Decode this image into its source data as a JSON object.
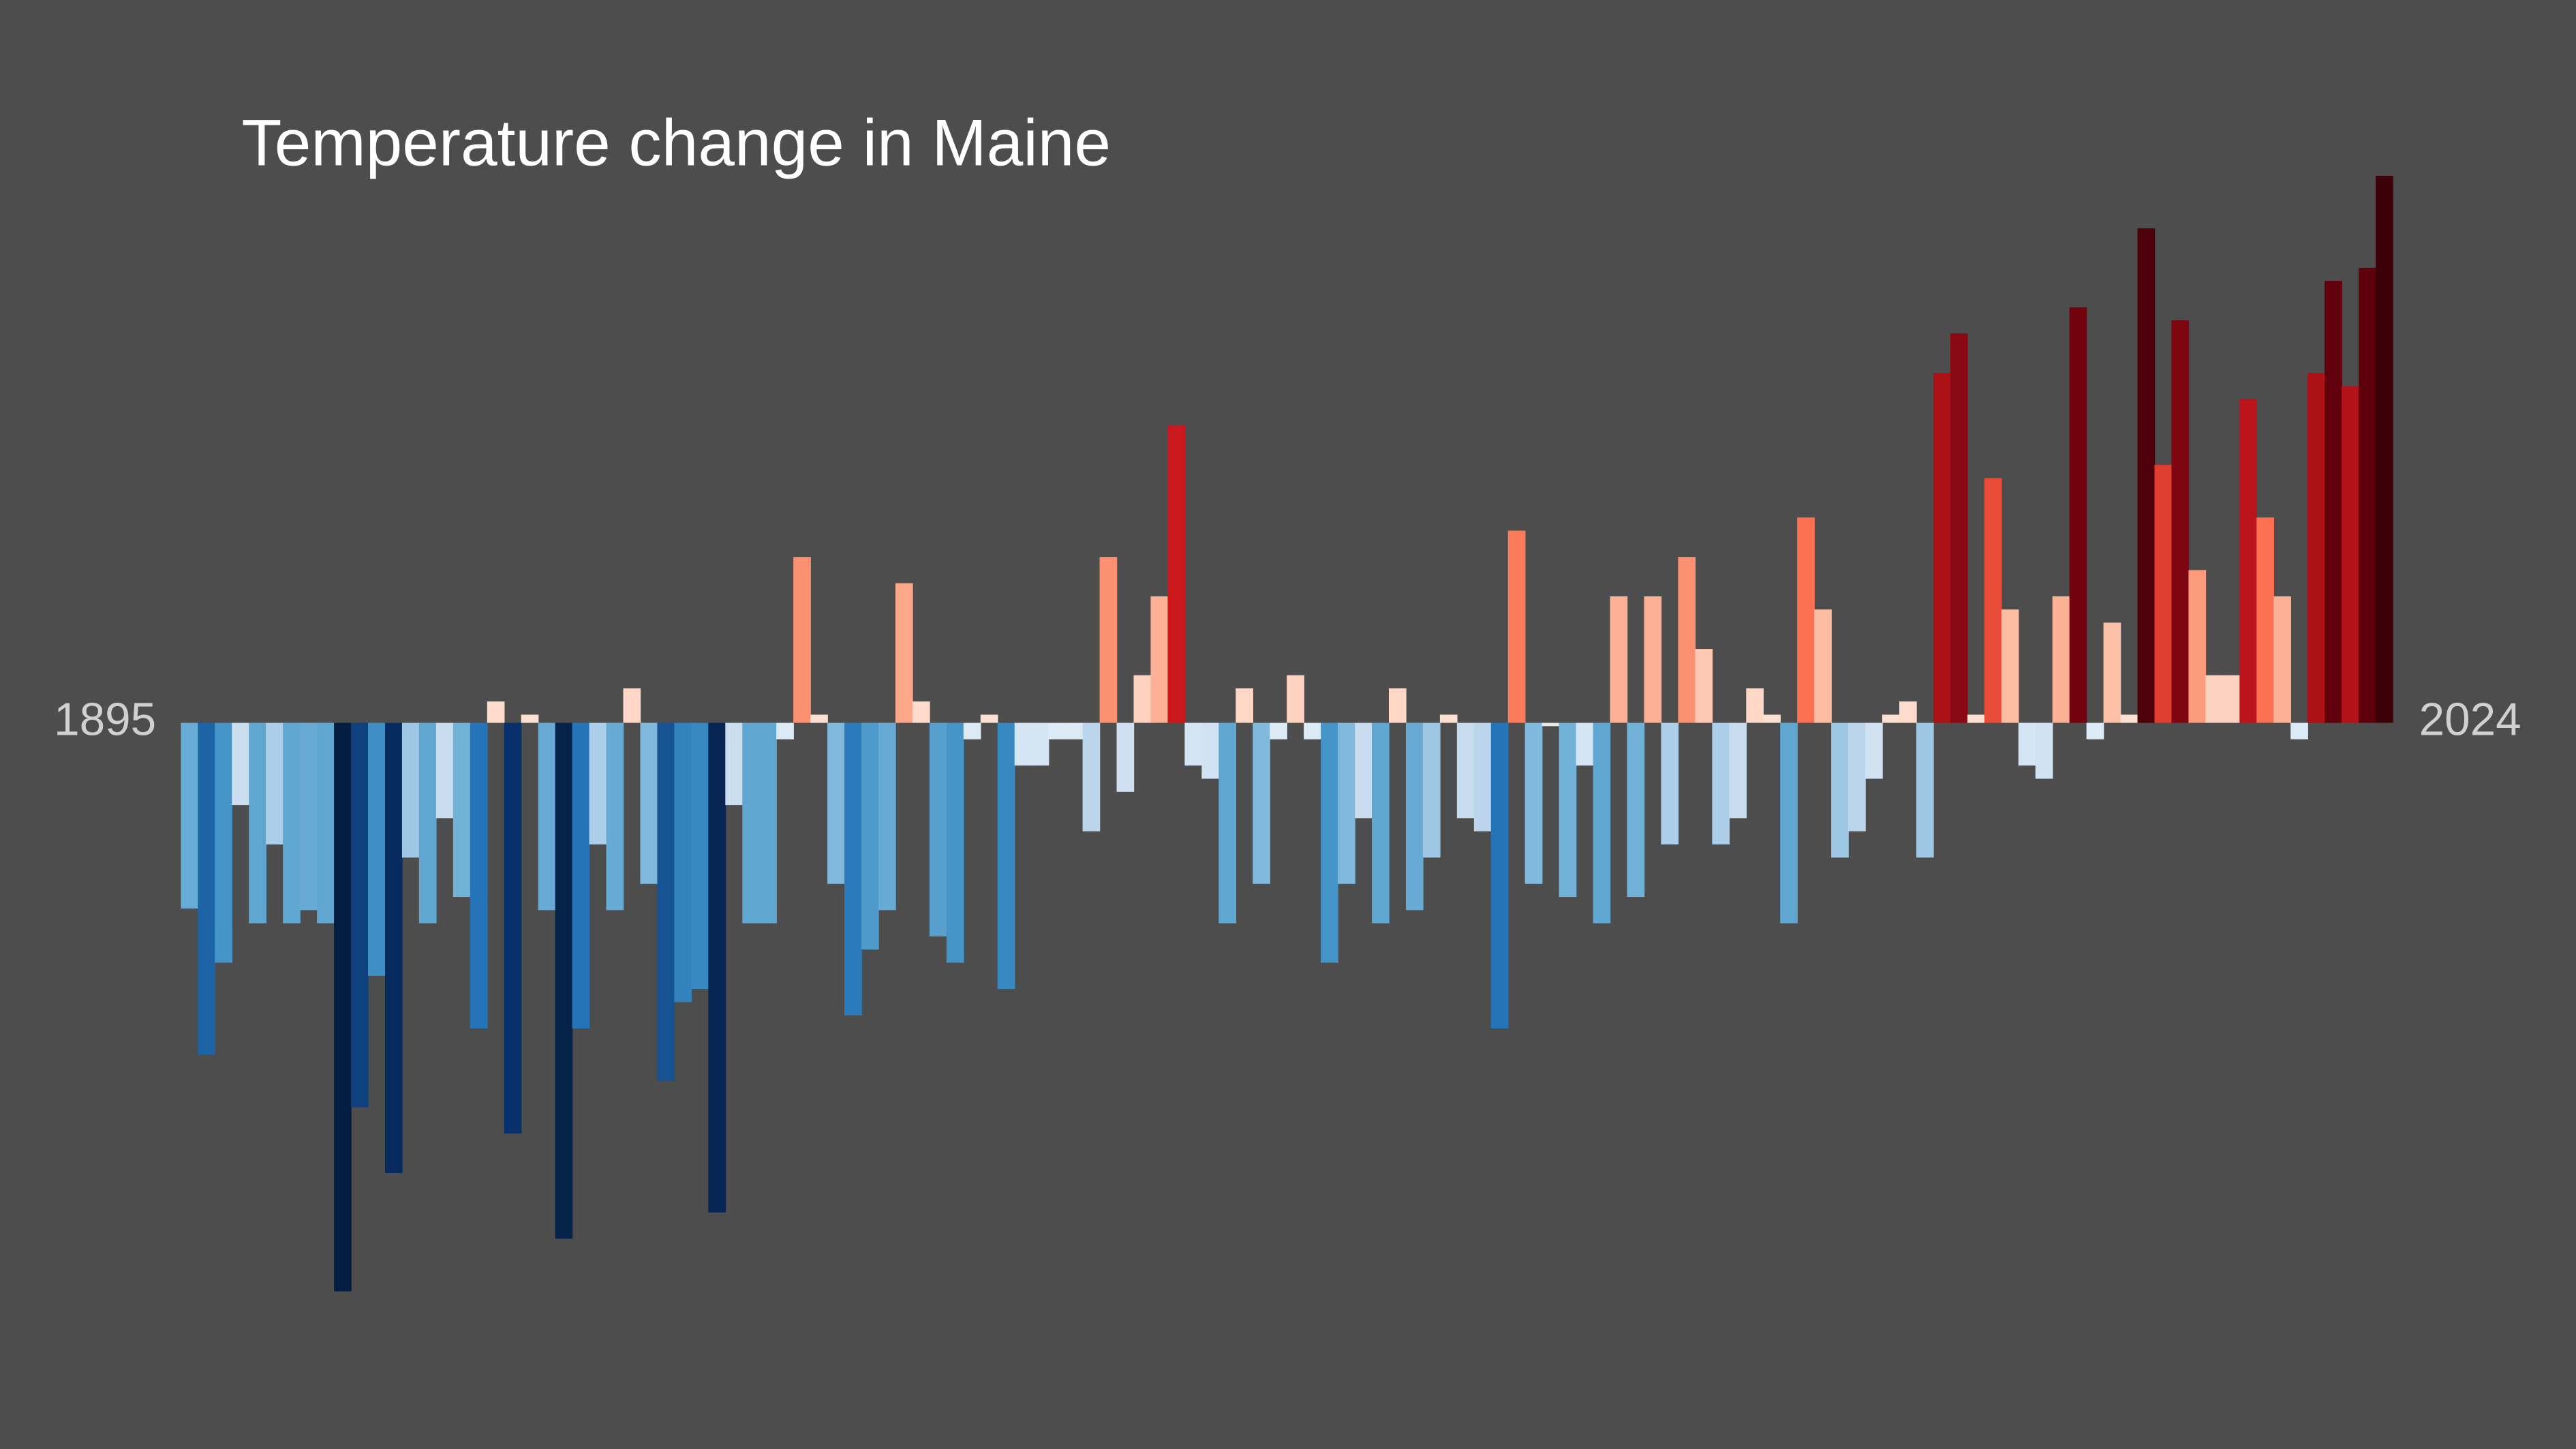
{
  "chart_data": {
    "type": "bar",
    "title": "Temperature change in Maine",
    "categories": [
      "1895",
      null,
      null,
      null,
      null,
      null,
      null,
      null,
      null,
      null,
      null,
      null,
      null,
      null,
      null,
      null,
      null,
      null,
      null,
      null,
      null,
      null,
      null,
      null,
      null,
      null,
      null,
      null,
      null,
      null,
      null,
      null,
      null,
      null,
      null,
      null,
      null,
      null,
      null,
      null,
      null,
      null,
      null,
      null,
      null,
      null,
      null,
      null,
      null,
      null,
      null,
      null,
      null,
      null,
      null,
      null,
      null,
      null,
      null,
      null,
      null,
      null,
      null,
      null,
      null,
      null,
      null,
      null,
      null,
      null,
      null,
      null,
      null,
      null,
      null,
      null,
      null,
      null,
      null,
      null,
      null,
      null,
      null,
      null,
      null,
      null,
      null,
      null,
      null,
      null,
      null,
      null,
      null,
      null,
      null,
      null,
      null,
      null,
      null,
      null,
      null,
      null,
      null,
      null,
      null,
      null,
      null,
      null,
      null,
      null,
      null,
      null,
      null,
      null,
      null,
      null,
      null,
      null,
      null,
      null,
      null,
      null,
      null,
      null,
      null,
      null,
      null,
      null,
      null,
      "2024"
    ],
    "values": [
      -1.13,
      -2.02,
      -1.46,
      -0.5,
      -1.22,
      -0.74,
      -1.22,
      -1.14,
      -1.22,
      -3.46,
      -2.34,
      -1.54,
      -2.74,
      -0.82,
      -1.22,
      -0.58,
      -1.06,
      -1.86,
      0.13,
      -2.5,
      0.05,
      -1.14,
      -3.14,
      -1.86,
      -0.74,
      -1.14,
      0.21,
      -0.98,
      -2.18,
      -1.7,
      -1.62,
      -2.98,
      -0.5,
      -1.22,
      -1.22,
      -0.1,
      1.01,
      0.05,
      -0.98,
      -1.78,
      -1.38,
      -1.14,
      0.85,
      0.13,
      -1.3,
      -1.46,
      -0.1,
      0.05,
      -1.62,
      -0.26,
      -0.26,
      -0.1,
      -0.1,
      -0.66,
      1.01,
      -0.42,
      0.29,
      0.77,
      1.81,
      -0.26,
      -0.34,
      -1.22,
      0.21,
      -0.98,
      -0.1,
      0.29,
      -0.1,
      -1.46,
      -0.98,
      -0.58,
      -1.22,
      0.21,
      -1.14,
      -0.82,
      0.05,
      -0.58,
      -0.66,
      -1.86,
      1.17,
      -0.98,
      -0.02,
      -1.06,
      -0.26,
      -1.22,
      0.77,
      -1.06,
      0.77,
      -0.74,
      1.01,
      0.45,
      -0.74,
      -0.58,
      0.21,
      0.05,
      -1.22,
      1.25,
      0.69,
      -0.82,
      -0.66,
      -0.34,
      0.05,
      0.13,
      -0.82,
      2.13,
      2.37,
      0.05,
      1.49,
      0.69,
      -0.26,
      -0.34,
      0.77,
      2.53,
      -0.1,
      0.61,
      0.05,
      3.01,
      1.57,
      2.45,
      0.93,
      0.29,
      0.29,
      1.97,
      1.25,
      0.77,
      -0.1,
      2.13,
      2.69,
      2.05,
      2.77,
      3.33
    ],
    "ylim": [
      -4.42,
      4.4
    ]
  }
}
